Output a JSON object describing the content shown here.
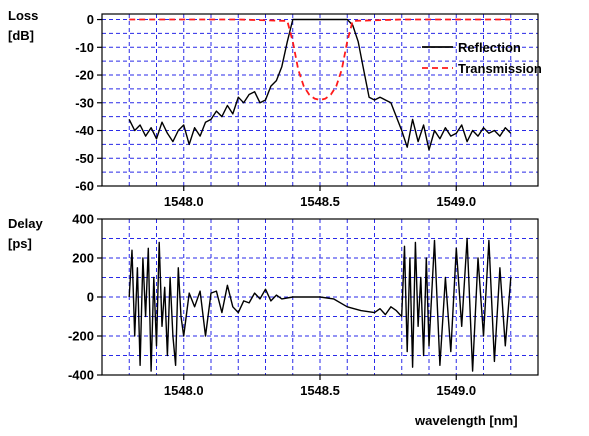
{
  "chart_data": [
    {
      "type": "line",
      "ylabel_line1": "Loss",
      "ylabel_line2": "[dB]",
      "xlim": [
        1547.7,
        1549.3
      ],
      "ylim": [
        -60,
        2
      ],
      "x_ticks": [
        1548.0,
        1548.5,
        1549.0
      ],
      "x_tick_labels": [
        "1548.0",
        "1548.5",
        "1549.0"
      ],
      "y_ticks": [
        0,
        -10,
        -20,
        -30,
        -40,
        -50,
        -60
      ],
      "y_tick_labels": [
        "0",
        "-10",
        "-20",
        "-30",
        "-40",
        "-50",
        "-60"
      ],
      "grid": true,
      "legend": "top-right",
      "series": [
        {
          "name": "Reflection",
          "color": "#000000",
          "style": "solid",
          "x": [
            1547.8,
            1547.82,
            1547.84,
            1547.86,
            1547.88,
            1547.9,
            1547.92,
            1547.94,
            1547.96,
            1547.98,
            1548.0,
            1548.02,
            1548.04,
            1548.06,
            1548.08,
            1548.1,
            1548.12,
            1548.14,
            1548.16,
            1548.18,
            1548.2,
            1548.22,
            1548.24,
            1548.26,
            1548.28,
            1548.3,
            1548.32,
            1548.34,
            1548.36,
            1548.38,
            1548.4,
            1548.44,
            1548.48,
            1548.52,
            1548.56,
            1548.6,
            1548.62,
            1548.64,
            1548.66,
            1548.68,
            1548.7,
            1548.72,
            1548.74,
            1548.76,
            1548.78,
            1548.8,
            1548.82,
            1548.84,
            1548.86,
            1548.88,
            1548.9,
            1548.92,
            1548.94,
            1548.96,
            1548.98,
            1549.0,
            1549.02,
            1549.04,
            1549.06,
            1549.08,
            1549.1,
            1549.12,
            1549.14,
            1549.16,
            1549.18,
            1549.2
          ],
          "y": [
            -36,
            -40,
            -38,
            -42,
            -39,
            -43,
            -37,
            -41,
            -44,
            -40,
            -38,
            -45,
            -39,
            -42,
            -37,
            -36,
            -33,
            -35,
            -31,
            -34,
            -28,
            -30,
            -27,
            -26,
            -30,
            -29,
            -24,
            -22,
            -17,
            -8,
            0,
            0,
            0,
            0,
            0,
            0,
            -2,
            -8,
            -18,
            -28,
            -29,
            -28,
            -29,
            -30,
            -35,
            -40,
            -46,
            -36,
            -44,
            -38,
            -47,
            -40,
            -43,
            -39,
            -42,
            -41,
            -38,
            -44,
            -40,
            -42,
            -39,
            -41,
            -40,
            -42,
            -39,
            -41
          ]
        },
        {
          "name": "Transmission",
          "color": "#ff1a1a",
          "style": "dashed",
          "x": [
            1547.8,
            1548.0,
            1548.2,
            1548.38,
            1548.4,
            1548.42,
            1548.44,
            1548.46,
            1548.48,
            1548.5,
            1548.52,
            1548.54,
            1548.56,
            1548.58,
            1548.6,
            1548.62,
            1548.8,
            1549.0,
            1549.2
          ],
          "y": [
            0,
            0,
            0,
            -0.5,
            -8,
            -18,
            -24,
            -27,
            -28.5,
            -29,
            -28.5,
            -27,
            -24,
            -18,
            -8,
            -0.5,
            0,
            0,
            0
          ]
        }
      ]
    },
    {
      "type": "line",
      "ylabel_line1": "Delay",
      "ylabel_line2": "[ps]",
      "xlabel": "wavelength [nm]",
      "xlim": [
        1547.7,
        1549.3
      ],
      "ylim": [
        -400,
        400
      ],
      "x_ticks": [
        1548.0,
        1548.5,
        1549.0
      ],
      "x_tick_labels": [
        "1548.0",
        "1548.5",
        "1549.0"
      ],
      "y_ticks": [
        400,
        200,
        0,
        -200,
        -400
      ],
      "y_tick_labels": [
        "400",
        "200",
        "0",
        "-200",
        "-400"
      ],
      "grid": true,
      "series": [
        {
          "name": "",
          "color": "#000000",
          "style": "solid",
          "x": [
            1547.8,
            1547.81,
            1547.82,
            1547.83,
            1547.84,
            1547.85,
            1547.86,
            1547.87,
            1547.88,
            1547.89,
            1547.9,
            1547.91,
            1547.92,
            1547.93,
            1547.94,
            1547.95,
            1547.96,
            1547.97,
            1547.98,
            1547.99,
            1548.0,
            1548.02,
            1548.04,
            1548.06,
            1548.08,
            1548.1,
            1548.12,
            1548.14,
            1548.16,
            1548.18,
            1548.2,
            1548.22,
            1548.24,
            1548.26,
            1548.28,
            1548.3,
            1548.32,
            1548.34,
            1548.36,
            1548.4,
            1548.45,
            1548.5,
            1548.55,
            1548.6,
            1548.65,
            1548.7,
            1548.72,
            1548.74,
            1548.76,
            1548.78,
            1548.8,
            1548.81,
            1548.82,
            1548.83,
            1548.84,
            1548.85,
            1548.86,
            1548.87,
            1548.88,
            1548.89,
            1548.9,
            1548.92,
            1548.94,
            1548.96,
            1548.98,
            1549.0,
            1549.02,
            1549.04,
            1549.06,
            1549.08,
            1549.1,
            1549.12,
            1549.14,
            1549.16,
            1549.18,
            1549.2
          ],
          "y": [
            0,
            240,
            -200,
            150,
            -350,
            200,
            -100,
            250,
            -380,
            100,
            -250,
            280,
            -150,
            50,
            -300,
            100,
            -200,
            -350,
            150,
            -100,
            -200,
            20,
            -50,
            30,
            -200,
            20,
            30,
            -80,
            60,
            -50,
            -80,
            -20,
            -30,
            20,
            -10,
            40,
            -20,
            10,
            -10,
            0,
            0,
            0,
            -10,
            -50,
            -70,
            -80,
            -60,
            -90,
            -50,
            -70,
            -100,
            260,
            -280,
            200,
            -360,
            280,
            -150,
            100,
            -300,
            200,
            -250,
            290,
            -350,
            100,
            -280,
            250,
            -150,
            300,
            -380,
            200,
            -200,
            290,
            -330,
            150,
            -250,
            100
          ]
        }
      ]
    }
  ],
  "legend": {
    "reflection_label": "Reflection",
    "transmission_label": "Transmission"
  }
}
